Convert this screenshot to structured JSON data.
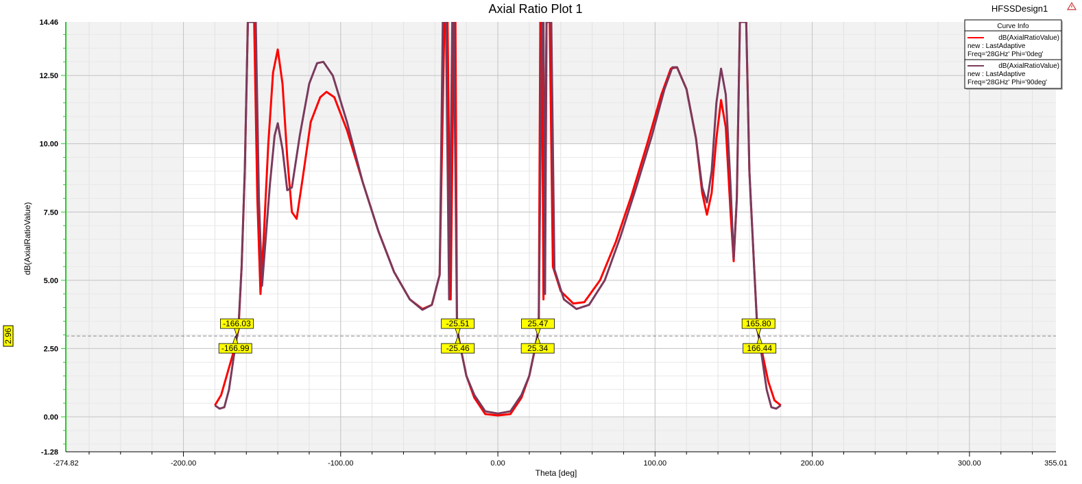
{
  "chart_data": {
    "type": "line",
    "title": "Axial Ratio Plot 1",
    "design_name": "HFSSDesign1",
    "xlabel": "Theta [deg]",
    "ylabel": "dB(AxialRatioValue)",
    "xlim": [
      -274.82,
      355.01
    ],
    "ylim": [
      -1.28,
      14.46
    ],
    "x_ticks": [
      "-274.82",
      "-200.00",
      "-100.00",
      "0.00",
      "100.00",
      "200.00",
      "300.00",
      "355.01"
    ],
    "y_ticks": [
      "14.46",
      "12.50",
      "10.00",
      "7.50",
      "5.00",
      "2.50",
      "0.00",
      "-1.28"
    ],
    "grid": true,
    "legend_position": "top-right",
    "legend_title": "Curve Info",
    "reference_line": {
      "value": 2.96,
      "label": "2.96"
    },
    "series": [
      {
        "line1": "dB(AxialRatioValue)",
        "line2": "new : LastAdaptive",
        "line3": "Freq='28GHz' Phi='0deg'",
        "color": "#ff0000",
        "points": [
          [
            -180,
            0.42
          ],
          [
            -176,
            0.8
          ],
          [
            -172,
            1.6
          ],
          [
            -168,
            2.4
          ],
          [
            -165,
            3.2
          ],
          [
            -163,
            5.5
          ],
          [
            -161,
            9.0
          ],
          [
            -159,
            14.46
          ],
          [
            -155,
            14.46
          ],
          [
            -153,
            8.0
          ],
          [
            -151,
            4.5
          ],
          [
            -149,
            6.5
          ],
          [
            -146,
            10.0
          ],
          [
            -143,
            12.6
          ],
          [
            -140,
            13.45
          ],
          [
            -137,
            12.2
          ],
          [
            -134,
            9.5
          ],
          [
            -131,
            7.5
          ],
          [
            -128,
            7.25
          ],
          [
            -124,
            8.8
          ],
          [
            -119,
            10.8
          ],
          [
            -113,
            11.7
          ],
          [
            -109,
            11.9
          ],
          [
            -104,
            11.7
          ],
          [
            -96,
            10.5
          ],
          [
            -86,
            8.6
          ],
          [
            -76,
            6.8
          ],
          [
            -66,
            5.3
          ],
          [
            -56,
            4.3
          ],
          [
            -48,
            3.95
          ],
          [
            -42,
            4.1
          ],
          [
            -37,
            5.2
          ],
          [
            -34,
            14.46
          ],
          [
            -32,
            14.46
          ],
          [
            -30,
            4.3
          ],
          [
            -28,
            14.46
          ],
          [
            -27,
            14.46
          ],
          [
            -26,
            3.3
          ],
          [
            -24,
            2.6
          ],
          [
            -20,
            1.5
          ],
          [
            -15,
            0.7
          ],
          [
            -8,
            0.1
          ],
          [
            0,
            0.05
          ],
          [
            8,
            0.1
          ],
          [
            15,
            0.7
          ],
          [
            20,
            1.5
          ],
          [
            24,
            2.6
          ],
          [
            26,
            3.3
          ],
          [
            27,
            14.46
          ],
          [
            28,
            14.46
          ],
          [
            29,
            4.3
          ],
          [
            31,
            14.46
          ],
          [
            33,
            14.46
          ],
          [
            35,
            5.5
          ],
          [
            40,
            4.6
          ],
          [
            48,
            4.15
          ],
          [
            55,
            4.2
          ],
          [
            65,
            5.0
          ],
          [
            75,
            6.4
          ],
          [
            85,
            8.1
          ],
          [
            95,
            10.0
          ],
          [
            104,
            11.8
          ],
          [
            110,
            12.75
          ],
          [
            114,
            12.8
          ],
          [
            120,
            12.0
          ],
          [
            126,
            10.2
          ],
          [
            130,
            8.2
          ],
          [
            133,
            7.4
          ],
          [
            136,
            8.2
          ],
          [
            139,
            10.2
          ],
          [
            142,
            11.6
          ],
          [
            145,
            10.6
          ],
          [
            148,
            7.5
          ],
          [
            150,
            5.7
          ],
          [
            152,
            8.0
          ],
          [
            154,
            14.46
          ],
          [
            158,
            14.46
          ],
          [
            160,
            9.0
          ],
          [
            163,
            5.5
          ],
          [
            165,
            3.2
          ],
          [
            168,
            2.4
          ],
          [
            172,
            1.3
          ],
          [
            176,
            0.6
          ],
          [
            180,
            0.42
          ]
        ]
      },
      {
        "line1": "dB(AxialRatioValue)",
        "line2": "new : LastAdaptive",
        "line3": "Freq='28GHz' Phi='90deg'",
        "color": "#7a3a5c",
        "points": [
          [
            -180,
            0.42
          ],
          [
            -177,
            0.3
          ],
          [
            -174,
            0.35
          ],
          [
            -171,
            1.0
          ],
          [
            -168,
            2.2
          ],
          [
            -165,
            3.3
          ],
          [
            -163,
            5.5
          ],
          [
            -161,
            9.0
          ],
          [
            -159,
            14.46
          ],
          [
            -154,
            14.46
          ],
          [
            -152,
            8.0
          ],
          [
            -150,
            4.8
          ],
          [
            -148,
            6.3
          ],
          [
            -145,
            8.5
          ],
          [
            -142,
            10.3
          ],
          [
            -140,
            10.75
          ],
          [
            -137,
            9.8
          ],
          [
            -134,
            8.3
          ],
          [
            -131,
            8.4
          ],
          [
            -126,
            10.3
          ],
          [
            -120,
            12.2
          ],
          [
            -115,
            12.95
          ],
          [
            -111,
            13.0
          ],
          [
            -105,
            12.5
          ],
          [
            -96,
            10.8
          ],
          [
            -86,
            8.6
          ],
          [
            -76,
            6.8
          ],
          [
            -66,
            5.3
          ],
          [
            -56,
            4.3
          ],
          [
            -48,
            3.92
          ],
          [
            -42,
            4.1
          ],
          [
            -37,
            5.2
          ],
          [
            -35,
            14.46
          ],
          [
            -33,
            14.46
          ],
          [
            -31,
            4.3
          ],
          [
            -29,
            14.46
          ],
          [
            -28,
            14.46
          ],
          [
            -26,
            3.3
          ],
          [
            -24,
            2.6
          ],
          [
            -20,
            1.5
          ],
          [
            -15,
            0.8
          ],
          [
            -8,
            0.2
          ],
          [
            0,
            0.12
          ],
          [
            8,
            0.2
          ],
          [
            15,
            0.8
          ],
          [
            20,
            1.5
          ],
          [
            24,
            2.6
          ],
          [
            26,
            3.3
          ],
          [
            28,
            14.46
          ],
          [
            29,
            14.46
          ],
          [
            30,
            4.5
          ],
          [
            31,
            14.46
          ],
          [
            34,
            14.46
          ],
          [
            36,
            5.4
          ],
          [
            42,
            4.3
          ],
          [
            50,
            3.95
          ],
          [
            58,
            4.1
          ],
          [
            68,
            5.0
          ],
          [
            78,
            6.6
          ],
          [
            88,
            8.4
          ],
          [
            98,
            10.3
          ],
          [
            106,
            12.0
          ],
          [
            111,
            12.8
          ],
          [
            114,
            12.8
          ],
          [
            120,
            12.0
          ],
          [
            126,
            10.2
          ],
          [
            130,
            8.4
          ],
          [
            133,
            7.85
          ],
          [
            136,
            9.0
          ],
          [
            139,
            11.5
          ],
          [
            142,
            12.75
          ],
          [
            145,
            11.8
          ],
          [
            148,
            8.5
          ],
          [
            150,
            5.8
          ],
          [
            152,
            8.0
          ],
          [
            154,
            14.46
          ],
          [
            158,
            14.46
          ],
          [
            160,
            9.0
          ],
          [
            163,
            5.5
          ],
          [
            165,
            3.3
          ],
          [
            168,
            2.2
          ],
          [
            171,
            1.0
          ],
          [
            174,
            0.35
          ],
          [
            177,
            0.3
          ],
          [
            180,
            0.42
          ]
        ]
      }
    ],
    "markers": [
      {
        "label": "-166.03",
        "x": -166.03,
        "y": 2.96,
        "dir": "up"
      },
      {
        "label": "-166.99",
        "x": -166.99,
        "y": 2.96,
        "dir": "down"
      },
      {
        "label": "-25.51",
        "x": -25.51,
        "y": 2.96,
        "dir": "up"
      },
      {
        "label": "-25.46",
        "x": -25.46,
        "y": 2.96,
        "dir": "down"
      },
      {
        "label": "25.47",
        "x": 25.47,
        "y": 2.96,
        "dir": "up"
      },
      {
        "label": "25.34",
        "x": 25.34,
        "y": 2.96,
        "dir": "down"
      },
      {
        "label": "165.80",
        "x": 165.8,
        "y": 2.96,
        "dir": "up"
      },
      {
        "label": "166.44",
        "x": 166.44,
        "y": 2.96,
        "dir": "down"
      }
    ]
  }
}
